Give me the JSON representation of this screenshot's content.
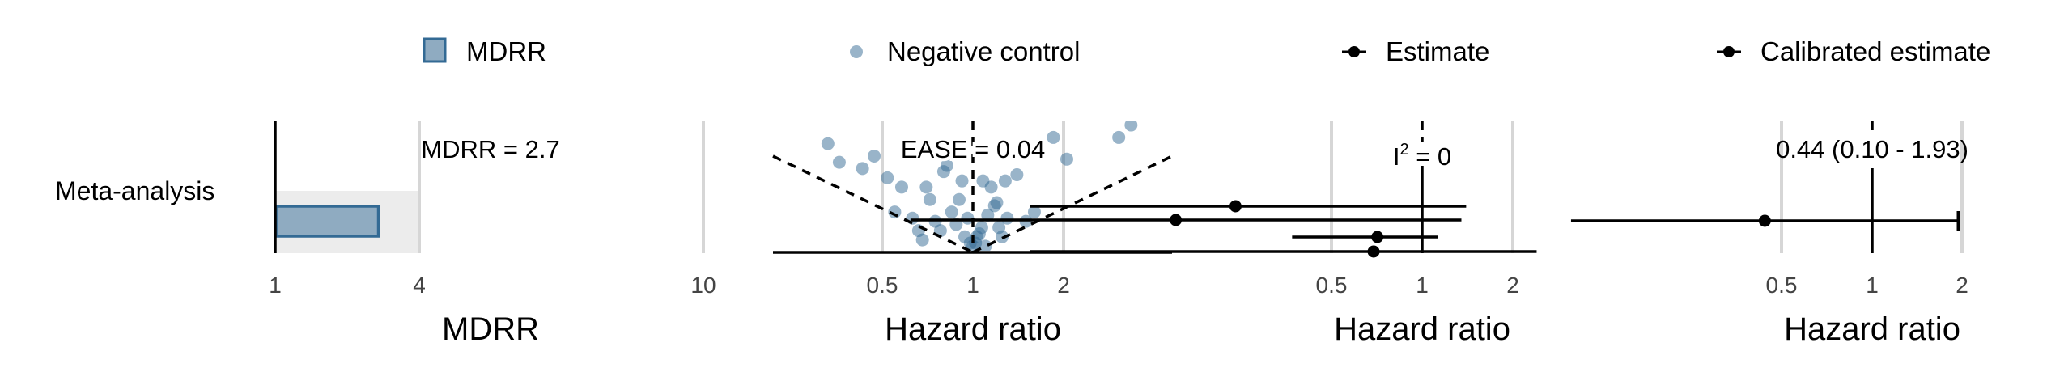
{
  "colors": {
    "mdrr_fill": "#8fabc1",
    "mdrr_border": "#336a94",
    "point_blue": "#336a94",
    "band": "#ececec",
    "grid": "#d6d6d6",
    "ink": "#000000"
  },
  "legend": [
    {
      "label": "MDRR",
      "icon": "mdrr-box-icon"
    },
    {
      "label": "Negative control",
      "icon": "negative-control-dot-icon"
    },
    {
      "label": "Estimate",
      "icon": "estimate-point-range-icon"
    },
    {
      "label": "Calibrated estimate",
      "icon": "calibrated-point-range-icon"
    }
  ],
  "chart_data": [
    {
      "type": "bar",
      "panel": "MDRR",
      "categories": [
        "Meta-analysis"
      ],
      "values": [
        2.7
      ],
      "annotation": "MDRR = 2.7",
      "xlabel": "MDRR",
      "xticks": [
        "1",
        "4",
        "10"
      ],
      "xlim": [
        1,
        10
      ],
      "scale": "log",
      "highlight_range": [
        1,
        4
      ]
    },
    {
      "type": "scatter",
      "panel": "Negative control",
      "annotation": "EASE = 0.04",
      "xlabel": "Hazard ratio",
      "xticks": [
        "0.5",
        "1",
        "2"
      ],
      "scale": "log",
      "x": [
        0.33,
        0.36,
        0.43,
        0.47,
        0.52,
        0.55,
        0.58,
        0.63,
        0.66,
        0.68,
        0.7,
        0.72,
        0.75,
        0.78,
        0.8,
        0.82,
        0.85,
        0.88,
        0.9,
        0.92,
        0.94,
        0.96,
        0.98,
        1.0,
        1.02,
        1.03,
        1.05,
        1.07,
        1.08,
        1.1,
        1.12,
        1.15,
        1.18,
        1.2,
        1.22,
        1.25,
        1.28,
        1.3,
        1.4,
        1.5,
        1.6,
        1.85,
        2.05,
        3.05,
        3.35,
        1.2,
        1.4,
        1.6
      ],
      "se": [
        0.35,
        0.29,
        0.27,
        0.31,
        0.24,
        0.13,
        0.21,
        0.11,
        0.07,
        0.04,
        0.21,
        0.17,
        0.1,
        0.07,
        0.26,
        0.28,
        0.13,
        0.09,
        0.17,
        0.23,
        0.05,
        0.11,
        0.03,
        0.02,
        0.03,
        0.05,
        0.06,
        0.08,
        0.23,
        0.02,
        0.12,
        0.21,
        0.15,
        0.16,
        0.08,
        0.05,
        0.23,
        0.11,
        0.25,
        0.1,
        0.13,
        0.37,
        0.3,
        0.37,
        0.41,
        0.47,
        0.47,
        0.47
      ]
    },
    {
      "type": "errorbar",
      "panel": "Estimate",
      "annotation_base": "I",
      "annotation_sup": "2",
      "annotation_rest": " = 0",
      "xlabel": "Hazard ratio",
      "xticks": [
        "0.5",
        "1",
        "2"
      ],
      "scale": "log",
      "estimates": [
        {
          "estimate": 0.24,
          "lower": 0.05,
          "upper": 1.4
        },
        {
          "estimate": 0.152,
          "lower": 0.02,
          "upper": 1.35
        },
        {
          "estimate": 0.71,
          "lower": 0.37,
          "upper": 1.13
        },
        {
          "estimate": 0.69,
          "lower": 0.05,
          "upper": 2.4
        }
      ]
    },
    {
      "type": "errorbar",
      "panel": "Calibrated estimate",
      "annotation": "0.44 (0.10 - 1.93)",
      "xlabel": "Hazard ratio",
      "xticks": [
        "0.5",
        "1",
        "2"
      ],
      "scale": "log",
      "estimates": [
        {
          "estimate": 0.44,
          "lower": 0.1,
          "upper": 1.93
        }
      ]
    }
  ]
}
